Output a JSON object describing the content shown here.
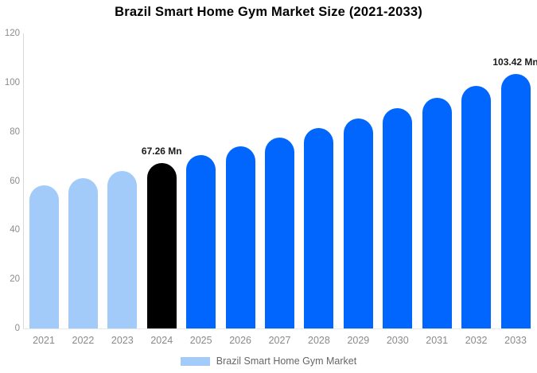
{
  "chart_data": {
    "type": "bar",
    "title": "Brazil Smart Home Gym Market Size (2021-2033)",
    "categories": [
      "2021",
      "2022",
      "2023",
      "2024",
      "2025",
      "2026",
      "2027",
      "2028",
      "2029",
      "2030",
      "2031",
      "2032",
      "2033"
    ],
    "values": [
      58.3,
      61.1,
      64.1,
      67.26,
      70.6,
      74.0,
      77.6,
      81.4,
      85.4,
      89.6,
      93.9,
      98.5,
      103.42
    ],
    "unit": "Mn",
    "xlabel": "",
    "ylabel": "",
    "ylim": [
      0,
      120
    ],
    "yticks": [
      0,
      20,
      40,
      60,
      80,
      100,
      120
    ],
    "grid": false,
    "bar_colors": [
      "#A3CBFA",
      "#A3CBFA",
      "#A3CBFA",
      "#000000",
      "#0066FD",
      "#0066FD",
      "#0066FD",
      "#0066FD",
      "#0066FD",
      "#0066FD",
      "#0066FD",
      "#0066FD",
      "#0066FD"
    ],
    "annotations": [
      {
        "index": 3,
        "text": "67.26 Mn"
      },
      {
        "index": 12,
        "text": "103.42 Mn"
      }
    ],
    "legend": {
      "position": "bottom",
      "label": "Brazil Smart Home Gym Market",
      "swatch_color": "#A3CBFA"
    },
    "axis_colors": {
      "y_axis_line": "#d9d9d9",
      "baseline": "#e8e8e8",
      "tick_label": "#8c8c8c"
    }
  }
}
